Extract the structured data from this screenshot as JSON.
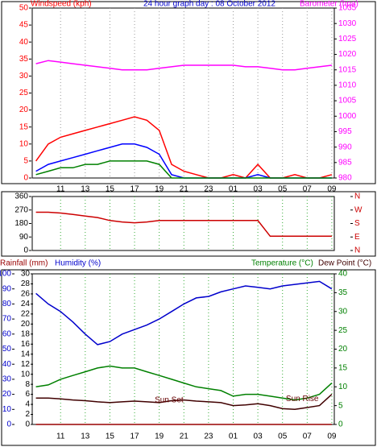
{
  "chart_data": [
    {
      "type": "line",
      "title": "24 hour graph day : 08 October 2012",
      "y_label": "Windspeed (kph)",
      "y2_label": "Barometer (hpa)",
      "x": [
        9,
        10,
        11,
        12,
        13,
        14,
        15,
        16,
        17,
        18,
        19,
        20,
        21,
        22,
        23,
        24,
        25,
        26,
        27,
        28,
        29,
        30,
        31,
        32,
        33
      ],
      "xlim": [
        8.7,
        33.2
      ],
      "xticks": [
        11,
        13,
        15,
        17,
        19,
        21,
        23,
        {
          "value": 25,
          "label": "01"
        },
        {
          "value": 27,
          "label": "03"
        },
        {
          "value": 29,
          "label": "05"
        },
        {
          "value": 31,
          "label": "07"
        },
        {
          "value": 33,
          "label": "09"
        }
      ],
      "ylim": [
        0,
        50
      ],
      "yticks": [
        0,
        5,
        10,
        15,
        20,
        25,
        30,
        35,
        40,
        45,
        50
      ],
      "y2lim": [
        980,
        1035
      ],
      "y2ticks": [
        980,
        985,
        990,
        995,
        1000,
        1005,
        1010,
        1015,
        1020,
        1025,
        1030,
        1035
      ],
      "grid": true,
      "series": [
        {
          "color": "#ff0000",
          "values": [
            5,
            10,
            12,
            13,
            14,
            15,
            16,
            17,
            18,
            17,
            14,
            4,
            2,
            1,
            0,
            0,
            1,
            0,
            4,
            0,
            0,
            1,
            0,
            0,
            1
          ]
        },
        {
          "color": "#0000ff",
          "values": [
            2,
            4,
            5,
            6,
            7,
            8,
            9,
            10,
            10,
            9,
            7,
            1,
            0,
            0,
            0,
            0,
            0,
            0,
            1,
            0,
            0,
            0,
            0,
            0,
            0
          ]
        },
        {
          "color": "#008000",
          "values": [
            1,
            2,
            3,
            3,
            4,
            4,
            5,
            5,
            5,
            5,
            4,
            0,
            0,
            0,
            0,
            0,
            0,
            0,
            0,
            0,
            0,
            0,
            0,
            0,
            0
          ]
        },
        {
          "color": "#ff00ff",
          "axis": "y2",
          "values": [
            1017,
            1018,
            1017.5,
            1017,
            1016.5,
            1016,
            1015.5,
            1015,
            1015,
            1015,
            1015.5,
            1016,
            1016.5,
            1016.5,
            1016.5,
            1016.5,
            1016.5,
            1016,
            1016,
            1015.5,
            1015,
            1015,
            1015.5,
            1016,
            1016.5
          ]
        }
      ]
    },
    {
      "type": "line",
      "x": [
        9,
        10,
        11,
        12,
        13,
        14,
        15,
        16,
        17,
        18,
        19,
        20,
        21,
        22,
        23,
        24,
        25,
        26,
        27,
        28,
        29,
        30,
        31,
        32,
        33
      ],
      "xlim": [
        8.7,
        33.2
      ],
      "xticks": [
        11,
        13,
        15,
        17,
        19,
        21,
        23,
        25,
        27,
        29,
        31,
        33
      ],
      "ylim": [
        0,
        360
      ],
      "yticks": [
        0,
        90,
        180,
        270,
        360
      ],
      "y2ticks": [
        {
          "value": 360,
          "label": "N"
        },
        {
          "value": 270,
          "label": "W"
        },
        {
          "value": 180,
          "label": "S"
        },
        {
          "value": 90,
          "label": "E"
        },
        {
          "value": 0,
          "label": "N"
        }
      ],
      "grid": true,
      "series": [
        {
          "color": "#cc0000",
          "values": [
            255,
            255,
            250,
            240,
            230,
            220,
            200,
            190,
            185,
            190,
            200,
            200,
            200,
            200,
            200,
            200,
            200,
            200,
            200,
            95,
            95,
            95,
            95,
            95,
            95
          ]
        }
      ]
    },
    {
      "type": "line",
      "rainfall_label": "Rainfall (mm)",
      "humidity_label": "Humidity (%)",
      "temperature_label": "Temperature (°C)",
      "dewpoint_label": "Dew Point (°C)",
      "x": [
        9,
        10,
        11,
        12,
        13,
        14,
        15,
        16,
        17,
        18,
        19,
        20,
        21,
        22,
        23,
        24,
        25,
        26,
        27,
        28,
        29,
        30,
        31,
        32,
        33
      ],
      "xlim": [
        8.7,
        33.2
      ],
      "xticks": [
        11,
        13,
        15,
        17,
        19,
        21,
        23,
        {
          "value": 25,
          "label": "01"
        },
        {
          "value": 27,
          "label": "03"
        },
        {
          "value": 29,
          "label": "05"
        },
        {
          "value": 31,
          "label": "07"
        },
        {
          "value": 33,
          "label": "09"
        }
      ],
      "ylim": [
        0,
        100
      ],
      "yticks": [
        0,
        10,
        20,
        30,
        40,
        50,
        60,
        70,
        80,
        90,
        100
      ],
      "y3lim": [
        0,
        30
      ],
      "y3ticks": [
        0,
        2,
        4,
        6,
        8,
        10,
        12,
        14,
        16,
        18,
        20,
        22,
        24,
        26,
        28,
        30
      ],
      "y2lim": [
        0,
        40
      ],
      "y2ticks": [
        0,
        5,
        10,
        15,
        20,
        25,
        30,
        35,
        40
      ],
      "grid": true,
      "annotations": [
        {
          "text": "Sun Set",
          "x": 19.8,
          "y": 6.5
        },
        {
          "text": "Sun Rise",
          "x": 30.6,
          "y": 6.8
        }
      ],
      "series": [
        {
          "color": "#0000cc",
          "values": [
            87,
            80,
            75,
            68,
            60,
            53,
            55,
            60,
            63,
            66,
            70,
            75,
            80,
            84,
            85,
            88,
            90,
            92,
            91,
            90,
            92,
            93,
            94,
            95,
            90
          ]
        },
        {
          "color": "#008000",
          "axis": "y2",
          "values": [
            10,
            10.5,
            12,
            13,
            14,
            15,
            15.5,
            15,
            15,
            14,
            13,
            12,
            11,
            10,
            9.5,
            9,
            7.5,
            8,
            8,
            7.5,
            7,
            6.5,
            7,
            8,
            11
          ]
        },
        {
          "color": "#400000",
          "axis": "y2",
          "values": [
            7,
            7,
            6.8,
            6.5,
            6.3,
            6,
            5.8,
            6,
            6.2,
            6,
            5.8,
            6.3,
            6.5,
            6.2,
            6,
            5.8,
            5,
            5.2,
            5.5,
            5,
            4.2,
            4,
            4.5,
            5,
            8
          ]
        },
        {
          "color": "#990000",
          "axis": "y3",
          "values": [
            0,
            0,
            0,
            0,
            0,
            0,
            0,
            0,
            0,
            0,
            0,
            0,
            0,
            0,
            0,
            0,
            0,
            0,
            0,
            0,
            0,
            0,
            0,
            0,
            0
          ]
        }
      ]
    }
  ]
}
